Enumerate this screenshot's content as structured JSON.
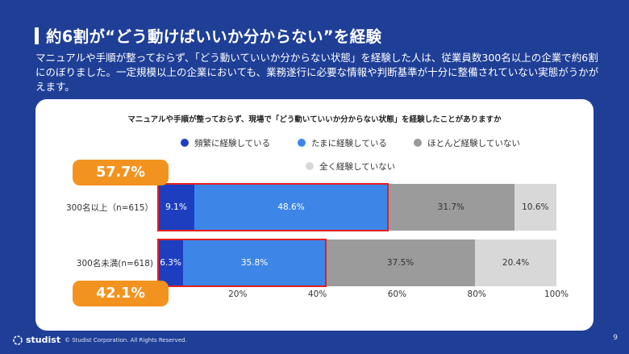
{
  "slide": {
    "title": "約6割が“どう動けばいいか分からない”を経験",
    "description": "マニュアルや手順が整っておらず、「どう動いていいか分からない状態」を経験した人は、従業員数300名以上の企業で約6割にのぼりました。一定規模以上の企業においても、業務遂行に必要な情報や判断基準が十分に整備されていない実態がうかがえます。",
    "page_number": "9"
  },
  "footer": {
    "logo_text": "studist",
    "copyright": "© Studist Corporation. All Rights Reserved."
  },
  "chart_data": {
    "type": "bar",
    "orientation": "horizontal-stacked-100",
    "title": "マニュアルや手順が整っておらず、現場で「どう動いていいか分からない状態」を経験したことがありますか",
    "categories": [
      "300名以上（n=615）",
      "300名未満(n=618)"
    ],
    "series": [
      {
        "name": "頻繁に経験している",
        "color": "#1d3fbf",
        "text_color": "#ffffff",
        "values": [
          9.1,
          6.3
        ],
        "labels": [
          "9.1%",
          "6.3%"
        ]
      },
      {
        "name": "たまに経験している",
        "color": "#3d86e8",
        "text_color": "#ffffff",
        "values": [
          48.6,
          35.8
        ],
        "labels": [
          "48.6%",
          "35.8%"
        ]
      },
      {
        "name": "ほとんど経験していない",
        "color": "#9b9b9b",
        "text_color": "#333333",
        "values": [
          31.7,
          37.5
        ],
        "labels": [
          "31.7%",
          "37.5%"
        ]
      },
      {
        "name": "全く経験していない",
        "color": "#d8d8d8",
        "text_color": "#333333",
        "values": [
          10.6,
          20.4
        ],
        "labels": [
          "10.6%",
          "20.4%"
        ]
      }
    ],
    "highlights": [
      {
        "category_index": 0,
        "total": 57.7,
        "label": "57.7%"
      },
      {
        "category_index": 1,
        "total": 42.1,
        "label": "42.1%"
      }
    ],
    "xlim": [
      0,
      100
    ],
    "xticks": [
      "20%",
      "40%",
      "60%",
      "80%",
      "100%"
    ],
    "highlight_color": "#e02020",
    "badge_color": "#f3931f",
    "grid": false,
    "legend": "top"
  }
}
